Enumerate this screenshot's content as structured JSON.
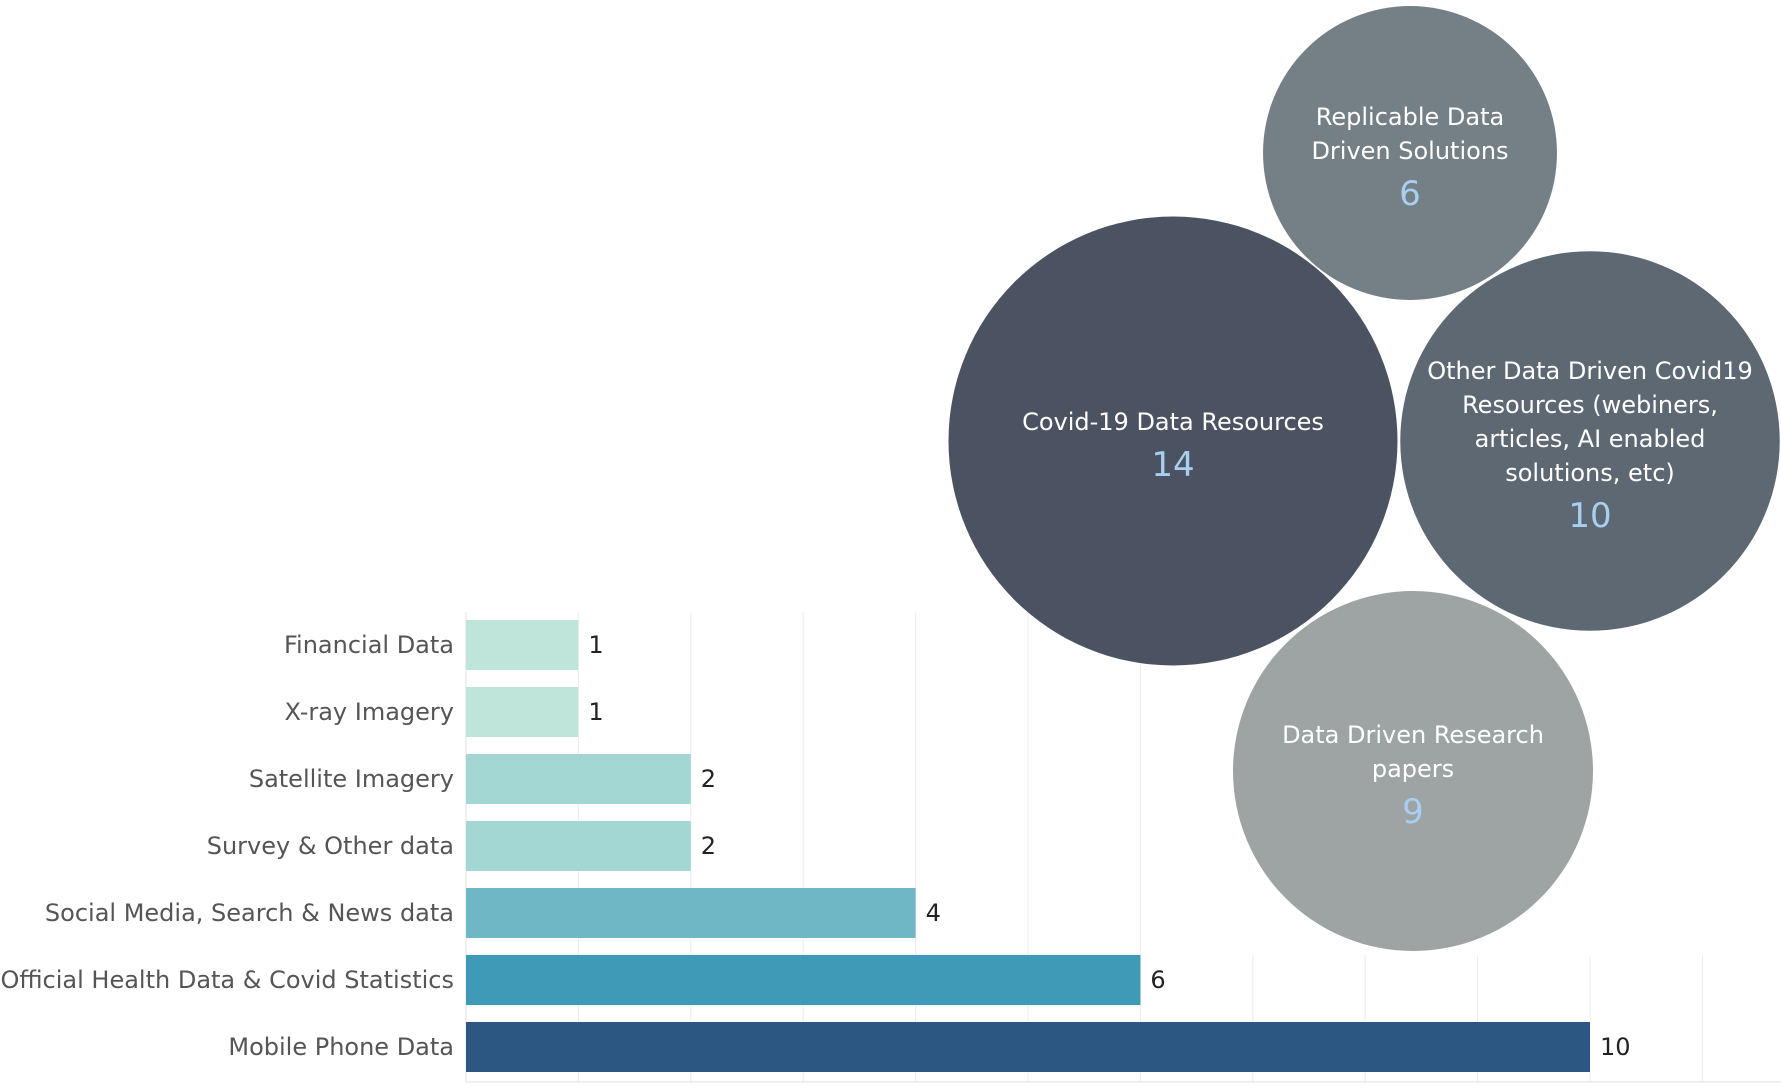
{
  "chart_data": [
    {
      "type": "bar",
      "orientation": "horizontal",
      "categories": [
        "Financial Data",
        "X-ray Imagery",
        "Satellite Imagery",
        "Survey & Other data",
        "Social Media, Search & News data",
        "Official Health Data & Covid Statistics",
        "Mobile Phone Data"
      ],
      "values": [
        1,
        1,
        2,
        2,
        4,
        6,
        10
      ],
      "colors": [
        "#bfe5da",
        "#bfe5da",
        "#a3d7d4",
        "#a3d7d4",
        "#6fb7c4",
        "#3f9ab8",
        "#2c5783"
      ],
      "xlim": [
        0,
        11
      ],
      "grid": true,
      "value_labels": true
    },
    {
      "type": "bubble",
      "items": [
        {
          "label": "Replicable Data Driven Solutions",
          "label_lines": [
            "Replicable Data",
            "Driven Solutions"
          ],
          "value": 6,
          "color": "#757f86"
        },
        {
          "label": "Covid-19 Data Resources",
          "label_lines": [
            "Covid-19 Data Resources"
          ],
          "value": 14,
          "color": "#4b5261"
        },
        {
          "label": "Other Data Driven Covid19 Resources (webiners, articles, AI enabled solutions, etc)",
          "label_lines": [
            "Other Data Driven Covid19",
            "Resources (webiners,",
            "articles, AI enabled",
            "solutions, etc)"
          ],
          "value": 10,
          "color": "#5e6873"
        },
        {
          "label": "Data Driven Research papers",
          "label_lines": [
            "Data Driven Research",
            "papers"
          ],
          "value": 9,
          "color": "#9ea3a4"
        }
      ],
      "value_color": "#a9cff0"
    }
  ]
}
